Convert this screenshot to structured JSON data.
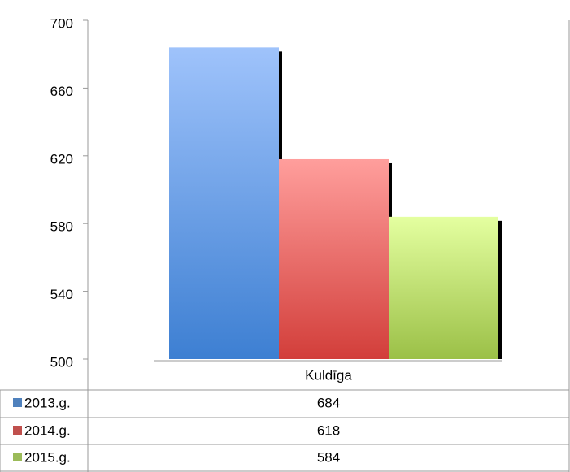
{
  "chart_data": {
    "type": "bar",
    "categories": [
      "Kuldīga"
    ],
    "series": [
      {
        "name": "2013.g.",
        "values": [
          684
        ],
        "color": "#4f81bd"
      },
      {
        "name": "2014.g.",
        "values": [
          618
        ],
        "color": "#c0504d"
      },
      {
        "name": "2015.g.",
        "values": [
          584
        ],
        "color": "#9bbb59"
      }
    ],
    "ylim": [
      500,
      700
    ],
    "yticks": [
      "700",
      "660",
      "620",
      "580",
      "540",
      "500"
    ],
    "grid": false,
    "legend": "data-table",
    "data_table": true
  }
}
